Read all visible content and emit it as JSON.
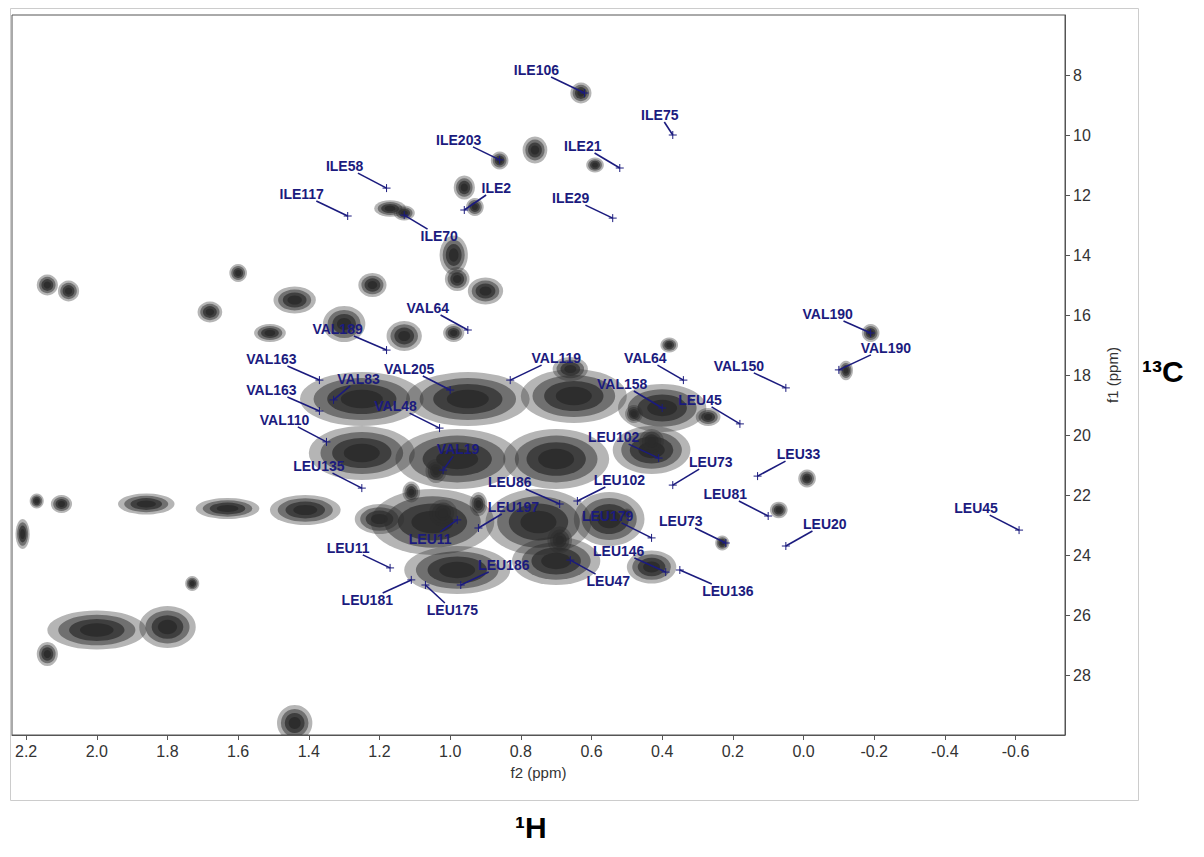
{
  "chart_data": {
    "type": "scatter",
    "x_label": "f2 (ppm)",
    "y_label": "f1 (ppm)",
    "x_nucleus": "¹H",
    "y_nucleus": "¹³C",
    "xlim": [
      2.24,
      -0.74
    ],
    "ylim": [
      6,
      30
    ],
    "xticks": [
      2.2,
      {
        "value": 2,
        "label": "2.0"
      },
      1.8,
      1.6,
      1.4,
      1.2,
      {
        "value": 1,
        "label": "1.0"
      },
      0.8,
      0.6,
      0.4,
      0.2,
      {
        "value": 0,
        "label": "0.0"
      },
      -0.2,
      -0.4,
      -0.6
    ],
    "yticks": [
      8,
      10,
      12,
      14,
      16,
      18,
      20,
      22,
      24,
      26,
      28
    ],
    "grid": false,
    "series": [
      {
        "type": "contour",
        "color": "#2b2b2b",
        "x": [
          0.63,
          0.76,
          0.86,
          0.59,
          0.96,
          0.93,
          1.17,
          1.13,
          0.99,
          0.98,
          0.9,
          0.99,
          1.22,
          1.3,
          1.44,
          1.6,
          1.68,
          1.51,
          2.14,
          2.08,
          2.17,
          2.1,
          1.86,
          1.63,
          1.41,
          1.2,
          2.0,
          1.8,
          2.14,
          1.73,
          1.44,
          2.21,
          1.25,
          0.95,
          0.65,
          0.4,
          1.25,
          0.98,
          0.7,
          0.43,
          1.05,
          0.75,
          0.55,
          0.98,
          0.7,
          1.04,
          1.02,
          1.11,
          0.92,
          0.69,
          0.43,
          0.48,
          0.27,
          0.43,
          0.5,
          0.38,
          -0.01,
          0.07,
          0.23,
          -0.19,
          -0.12,
          0.66,
          1.13
        ],
        "y": [
          8.6,
          10.5,
          10.85,
          11.0,
          11.75,
          12.4,
          12.45,
          12.6,
          14.0,
          14.8,
          15.2,
          16.6,
          15.0,
          16.3,
          15.5,
          14.6,
          15.9,
          16.6,
          15.0,
          15.2,
          22.2,
          22.3,
          22.3,
          22.45,
          22.5,
          22.8,
          26.5,
          26.4,
          27.3,
          24.95,
          29.6,
          23.3,
          18.8,
          18.8,
          18.7,
          19.1,
          20.6,
          20.8,
          20.8,
          20.5,
          22.9,
          22.9,
          22.8,
          24.5,
          24.2,
          21.2,
          22.6,
          21.9,
          22.3,
          23.5,
          20.2,
          19.3,
          19.4,
          24.4,
          22.6,
          17.0,
          21.45,
          22.5,
          23.6,
          16.6,
          17.85,
          17.8,
          16.7
        ],
        "width": [
          0.06,
          0.07,
          0.05,
          0.05,
          0.06,
          0.05,
          0.09,
          0.06,
          0.08,
          0.07,
          0.1,
          0.06,
          0.08,
          0.12,
          0.12,
          0.05,
          0.07,
          0.09,
          0.06,
          0.06,
          0.04,
          0.06,
          0.16,
          0.18,
          0.2,
          0.14,
          0.28,
          0.16,
          0.06,
          0.04,
          0.1,
          0.04,
          0.35,
          0.35,
          0.3,
          0.25,
          0.3,
          0.35,
          0.3,
          0.22,
          0.35,
          0.3,
          0.2,
          0.3,
          0.25,
          0.06,
          0.08,
          0.05,
          0.05,
          0.07,
          0.07,
          0.05,
          0.07,
          0.14,
          0.03,
          0.05,
          0.05,
          0.05,
          0.04,
          0.05,
          0.04,
          0.1,
          0.1
        ],
        "height": [
          0.7,
          0.9,
          0.6,
          0.5,
          0.8,
          0.6,
          0.55,
          0.5,
          1.3,
          0.8,
          0.9,
          0.6,
          0.8,
          1.2,
          0.9,
          0.6,
          0.7,
          0.6,
          0.7,
          0.7,
          0.5,
          0.6,
          0.7,
          0.7,
          1.0,
          1.0,
          1.3,
          1.4,
          0.8,
          0.5,
          1.2,
          1.0,
          1.8,
          1.8,
          1.8,
          1.6,
          1.8,
          2.0,
          2.0,
          1.6,
          2.2,
          2.2,
          1.8,
          1.6,
          1.6,
          0.8,
          0.9,
          0.7,
          0.8,
          0.9,
          0.8,
          0.6,
          0.6,
          1.1,
          0.3,
          0.5,
          0.6,
          0.55,
          0.5,
          0.6,
          0.65,
          0.8,
          1.0
        ]
      },
      {
        "type": "scatter",
        "marker": "plus",
        "color": "#1b1b7e",
        "labels": [
          "ILE106",
          "ILE75",
          "ILE203",
          "ILE21",
          "ILE58",
          "ILE2",
          "ILE117",
          "ILE29",
          "ILE70",
          "VAL64",
          "VAL189",
          "VAL190",
          "VAL190",
          "VAL163",
          "VAL205",
          "VAL119",
          "VAL64",
          "VAL150",
          "VAL163",
          "VAL83",
          "VAL158",
          "LEU45",
          "VAL48",
          "VAL110",
          "VAL19",
          "LEU102",
          "LEU135",
          "LEU73",
          "LEU33",
          "LEU86",
          "LEU102",
          "LEU81",
          "LEU45",
          "LEU197",
          "LEU179",
          "LEU73",
          "LEU20",
          "LEU11",
          "LEU11",
          "LEU146",
          "LEU186",
          "LEU47",
          "LEU136",
          "LEU181",
          "LEU175"
        ],
        "x": [
          0.62,
          0.37,
          0.86,
          0.52,
          1.18,
          0.96,
          1.29,
          0.54,
          1.13,
          0.95,
          1.18,
          -0.19,
          -0.1,
          1.37,
          1.0,
          0.83,
          0.34,
          0.05,
          1.37,
          1.33,
          0.4,
          0.18,
          1.03,
          1.35,
          1.02,
          0.41,
          1.25,
          0.37,
          0.13,
          0.69,
          0.64,
          0.1,
          -0.61,
          0.92,
          0.43,
          0.22,
          0.05,
          1.17,
          0.98,
          0.39,
          0.97,
          0.66,
          0.35,
          1.11,
          1.07
        ],
        "y": [
          8.6,
          10.0,
          10.83,
          11.1,
          11.77,
          12.5,
          12.7,
          12.77,
          12.67,
          16.5,
          17.17,
          16.6,
          17.83,
          18.17,
          18.5,
          18.17,
          18.17,
          18.43,
          19.2,
          18.83,
          19.1,
          19.63,
          19.77,
          20.23,
          21.17,
          20.77,
          21.77,
          21.67,
          21.37,
          22.3,
          22.2,
          22.7,
          23.17,
          23.1,
          23.43,
          23.6,
          23.7,
          24.43,
          22.83,
          24.57,
          25.0,
          24.17,
          24.5,
          24.83,
          25.0
        ]
      }
    ]
  }
}
